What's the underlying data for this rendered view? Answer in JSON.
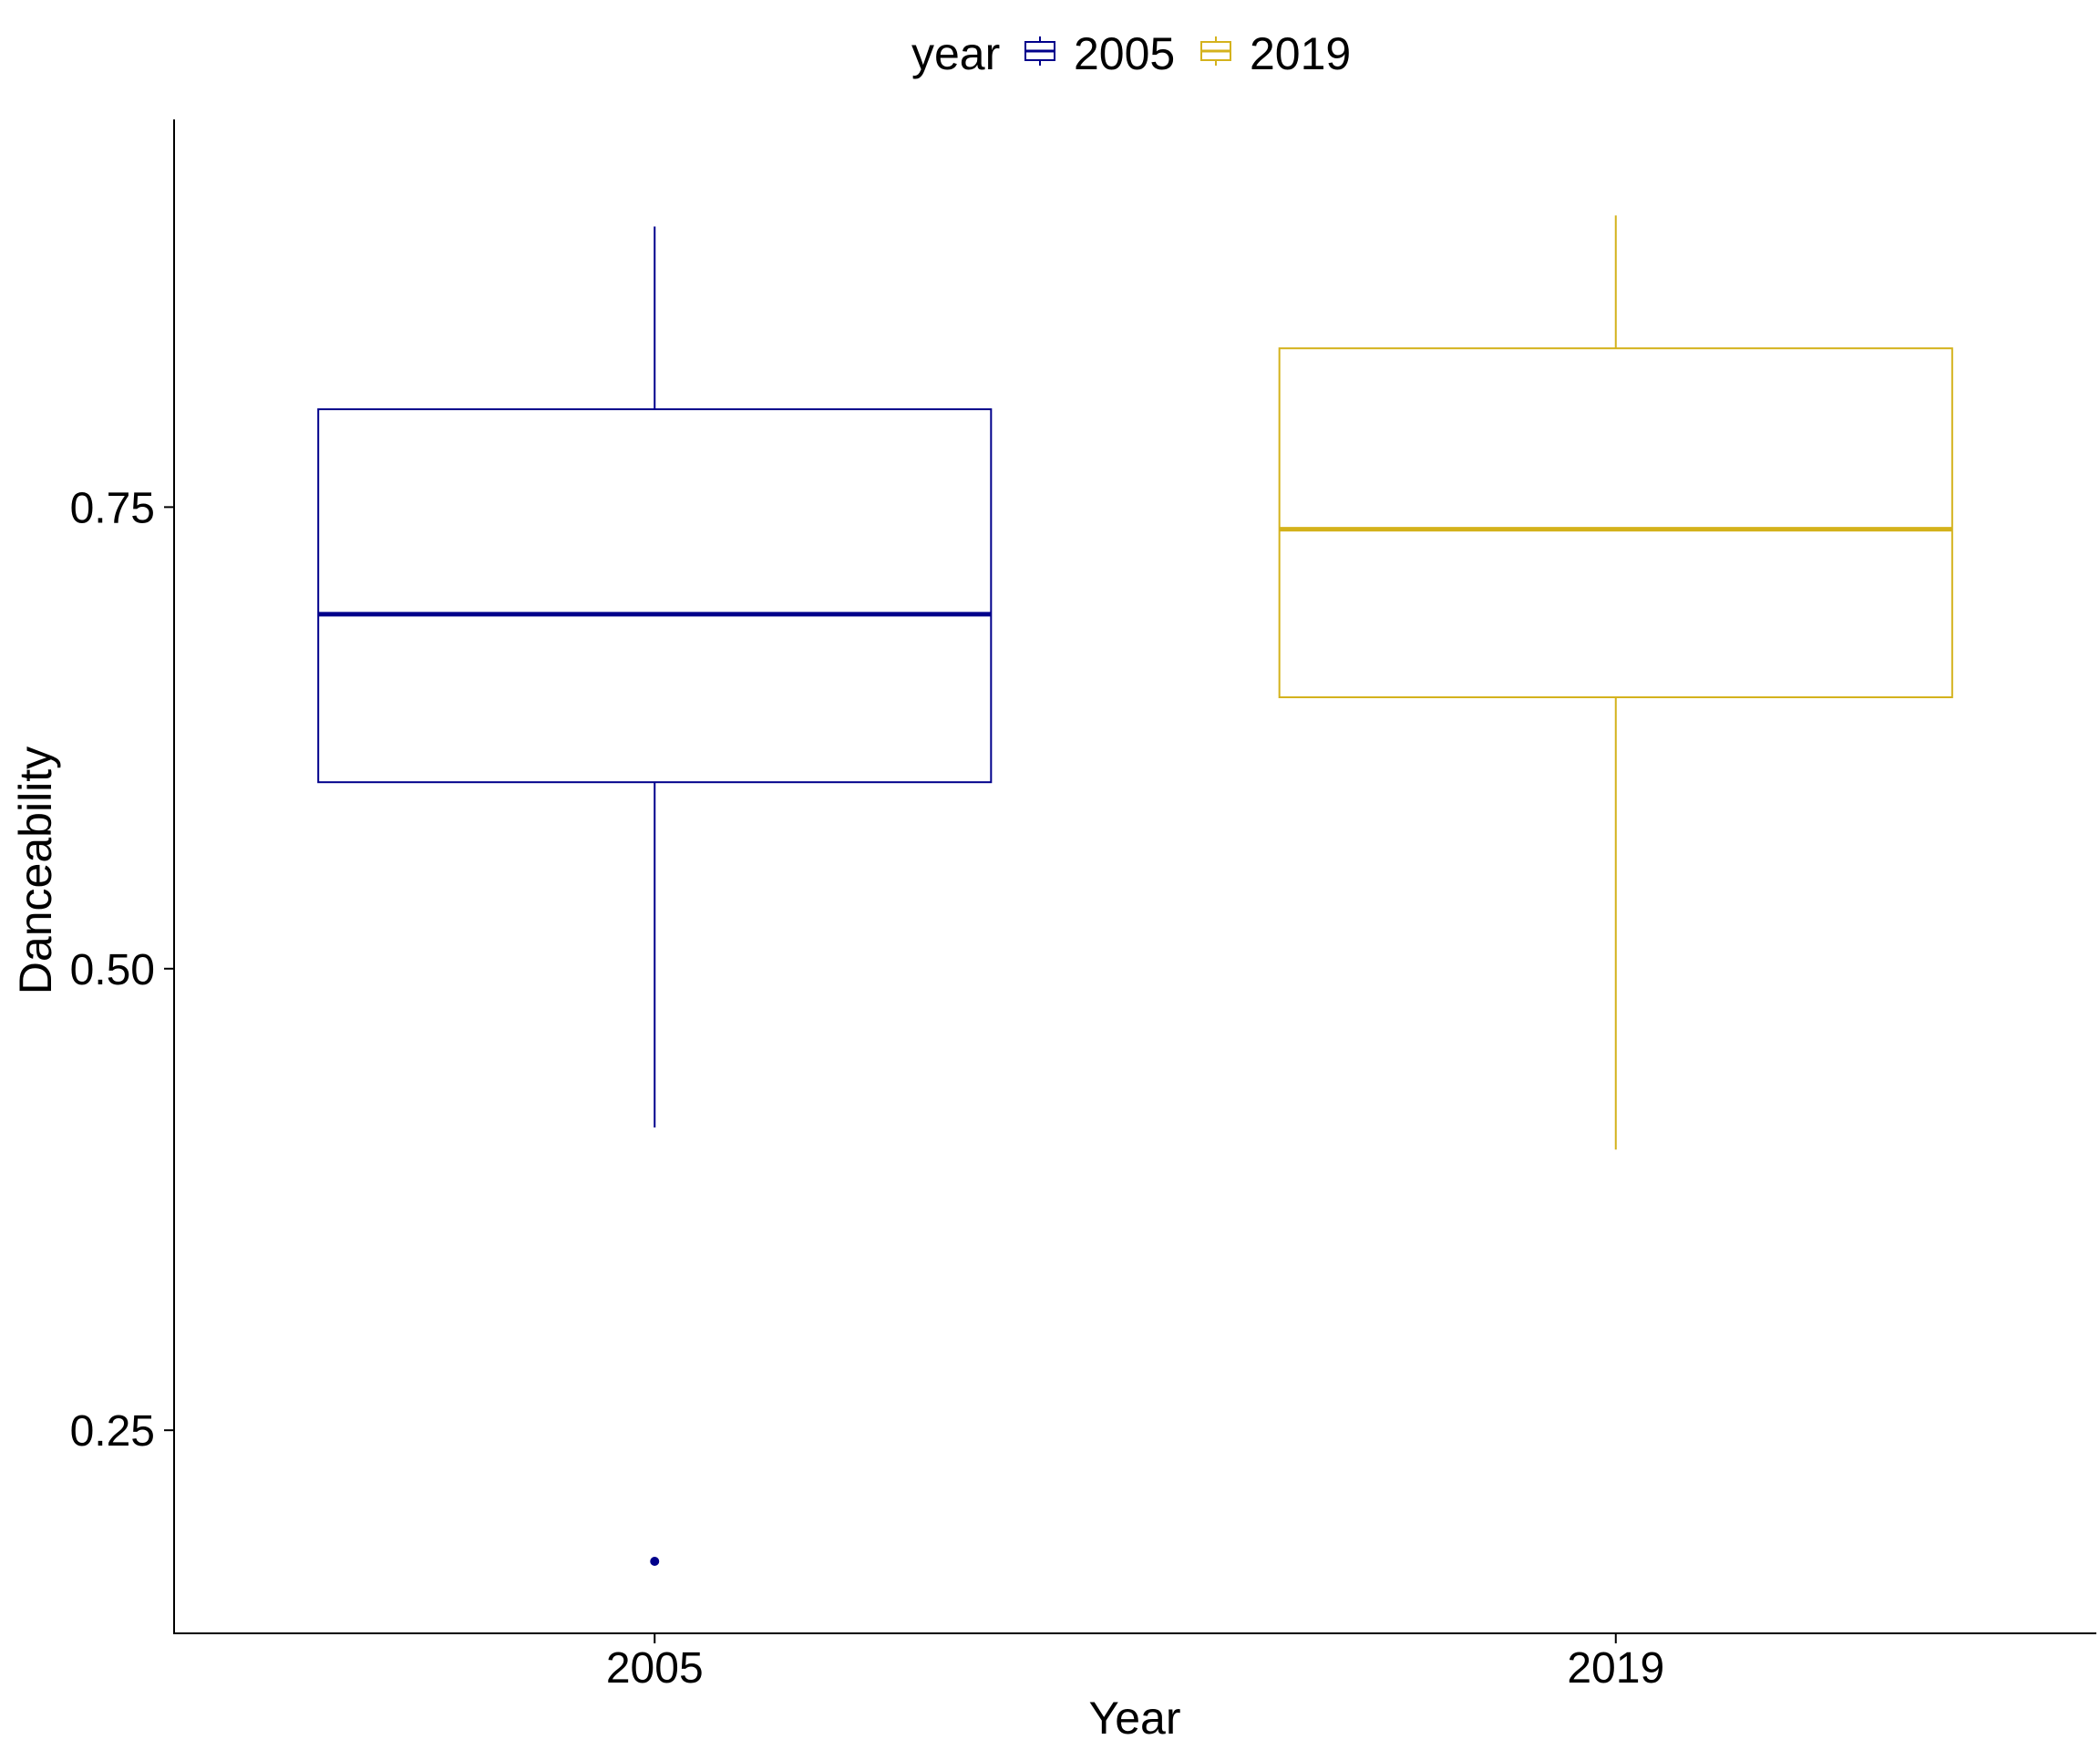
{
  "chart_data": {
    "type": "boxplot",
    "xlabel": "Year",
    "ylabel": "Danceability",
    "ylim": [
      0.14,
      0.96
    ],
    "y_ticks": [
      0.25,
      0.5,
      0.75
    ],
    "y_tick_labels": [
      "0.25",
      "0.50",
      "0.75"
    ],
    "categories": [
      "2005",
      "2019"
    ],
    "legend": {
      "title": "year",
      "position": "top",
      "entries": [
        "2005",
        "2019"
      ]
    },
    "grid": false,
    "series": [
      {
        "name": "2005",
        "color": "#00008B",
        "whisker_low": 0.414,
        "q1": 0.601,
        "median": 0.692,
        "q3": 0.803,
        "whisker_high": 0.902,
        "outliers": [
          0.179
        ]
      },
      {
        "name": "2019",
        "color": "#D4B21C",
        "whisker_low": 0.402,
        "q1": 0.647,
        "median": 0.738,
        "q3": 0.836,
        "whisker_high": 0.908,
        "outliers": []
      }
    ]
  }
}
